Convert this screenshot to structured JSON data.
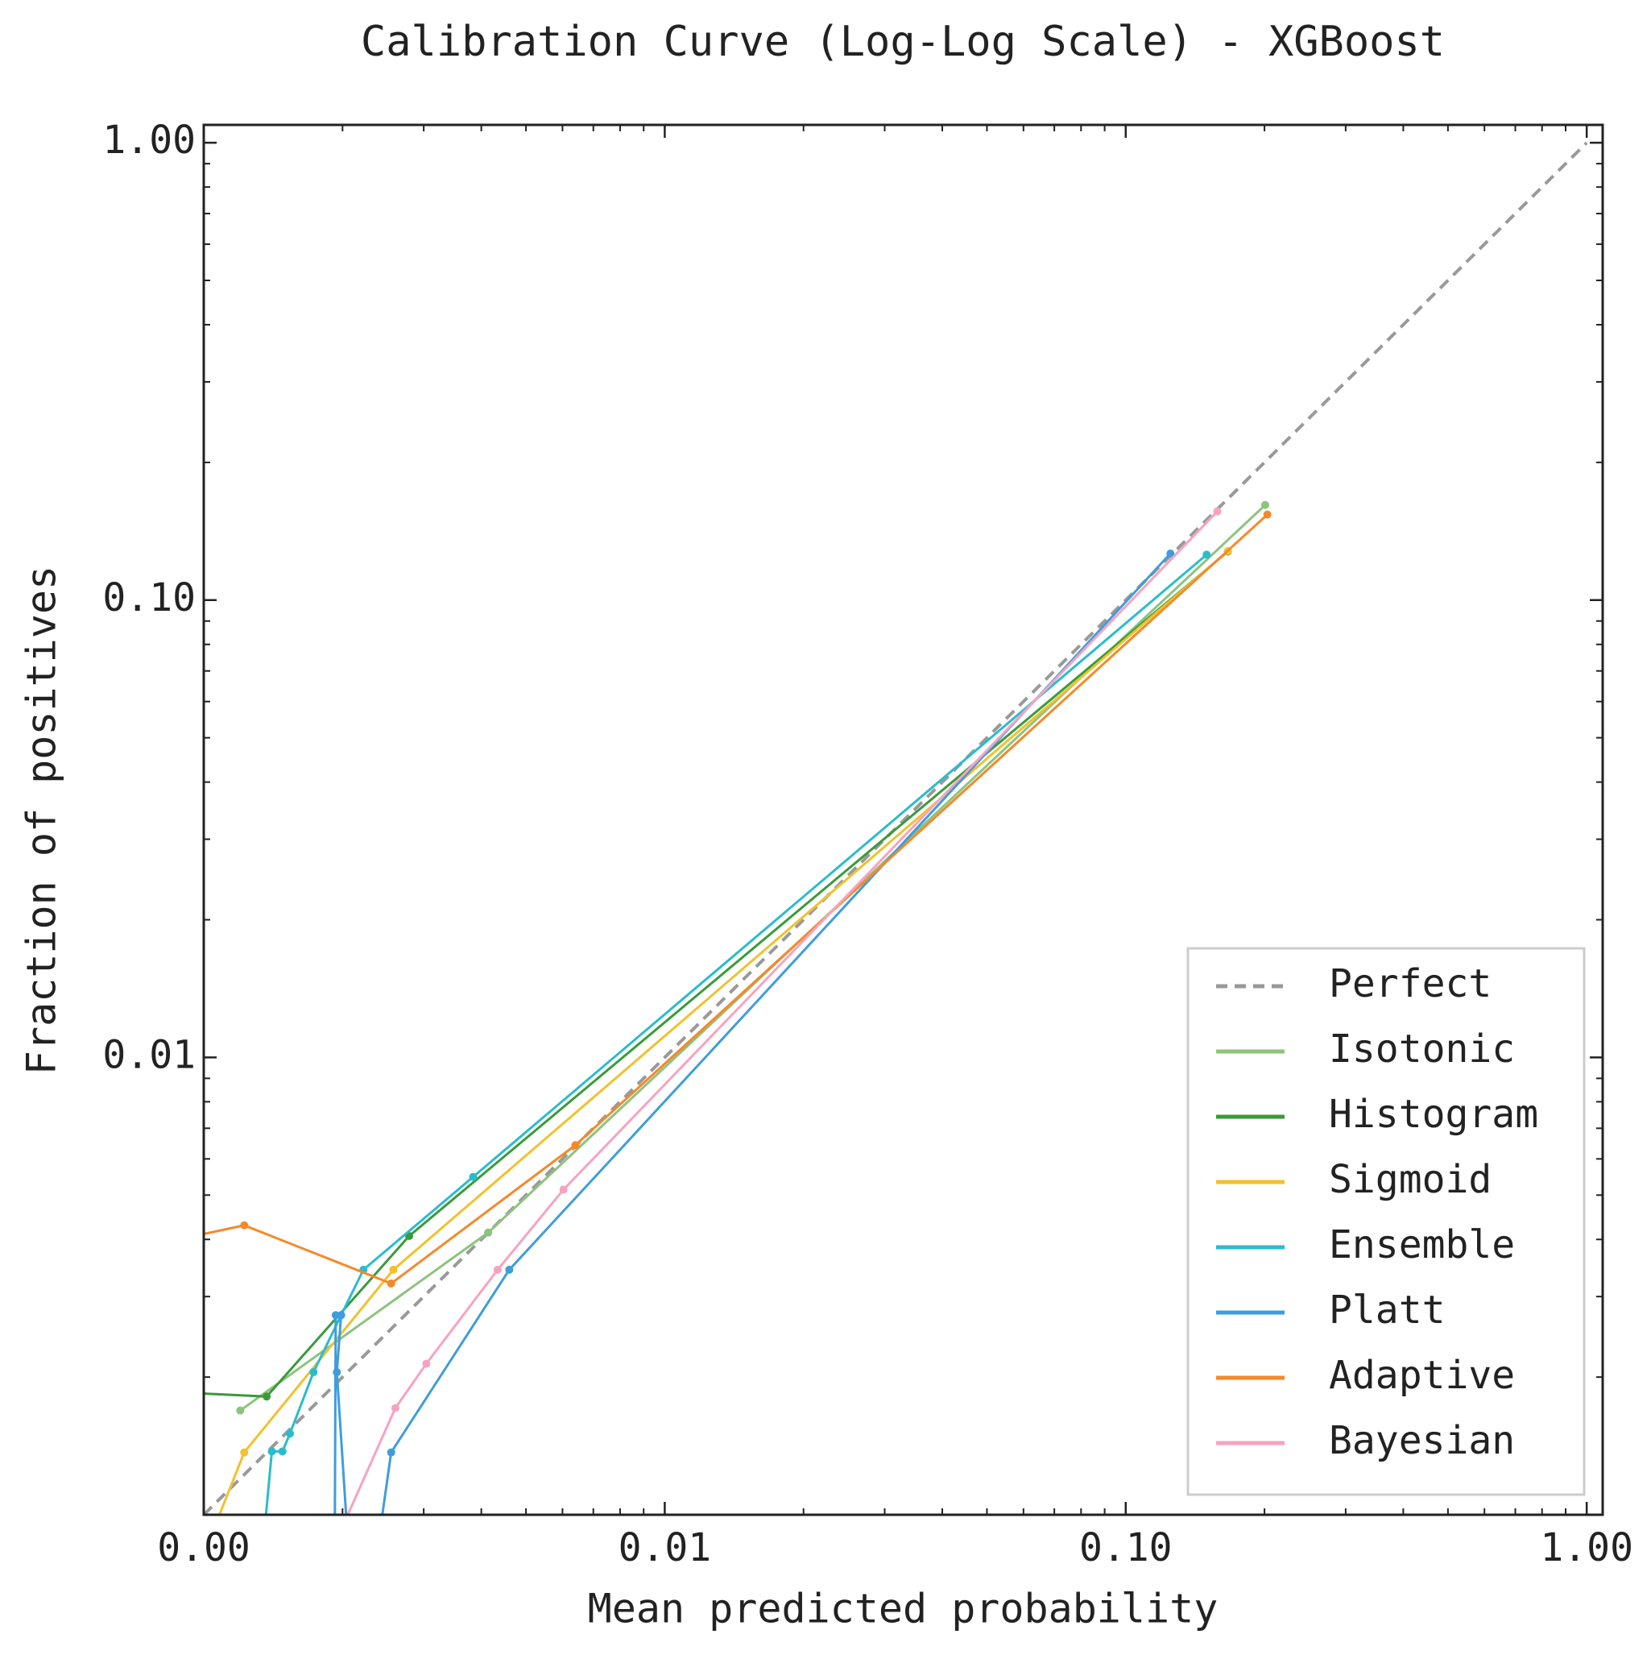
{
  "chart_data": {
    "type": "line",
    "title": "Calibration Curve (Log-Log Scale) - XGBoost",
    "x_label": "Mean predicted probability",
    "y_label": "Fraction of positives",
    "xscale": "log",
    "yscale": "log",
    "xlim": [
      0.001,
      1.083
    ],
    "ylim": [
      0.001,
      1.094
    ],
    "xticks": [
      {
        "value": 0.001,
        "label": "0.00"
      },
      {
        "value": 0.01,
        "label": "0.01"
      },
      {
        "value": 0.1,
        "label": "0.10"
      },
      {
        "value": 1,
        "label": "1.00"
      }
    ],
    "yticks": [
      {
        "value": 0.01,
        "label": "0.01"
      },
      {
        "value": 0.1,
        "label": "0.10"
      },
      {
        "value": 1,
        "label": "1.00"
      }
    ],
    "grid": false,
    "legend": "lower right",
    "series": [
      {
        "name": "Perfect",
        "color": "#999999",
        "style": "dashed",
        "markers": false,
        "x": [
          0.001,
          1
        ],
        "values": [
          0.001,
          1
        ]
      },
      {
        "name": "Isotonic",
        "color": "#8cc47e",
        "style": "solid",
        "markers": true,
        "x": [
          0.0012,
          0.00414,
          0.2007
        ],
        "values": [
          0.00169,
          0.00414,
          0.1614
        ]
      },
      {
        "name": "Histogram",
        "color": "#3a9a3a",
        "style": "solid",
        "markers": true,
        "x": [
          0.000804,
          0.001369,
          0.00279,
          0.1666
        ],
        "values": [
          0.00186,
          0.001814,
          0.00407,
          0.1277
        ]
      },
      {
        "name": "Sigmoid",
        "color": "#f2c12e",
        "style": "solid",
        "markers": true,
        "x": [
          0.00102,
          0.001224,
          0.002578,
          0.1666
        ],
        "values": [
          0.000862,
          0.001369,
          0.003434,
          0.128
        ]
      },
      {
        "name": "Ensemble",
        "color": "#2bbccc",
        "style": "solid",
        "markers": true,
        "x": [
          0.001333,
          0.001405,
          0.001482,
          0.001538,
          0.00173,
          0.001986,
          0.00222,
          0.00384,
          0.1498
        ],
        "values": [
          0.000775,
          0.001376,
          0.001376,
          0.001505,
          0.00205,
          0.002732,
          0.003434,
          0.00548,
          0.1257
        ]
      },
      {
        "name": "Platt",
        "color": "#3f9ddb",
        "style": "solid",
        "markers": true,
        "x": [
          0.001923,
          0.001933,
          0.001986,
          0.001944,
          0.00207,
          0.002354,
          0.00255,
          0.0046,
          0.125
        ],
        "values": [
          0.000775,
          0.002732,
          0.002732,
          0.00205,
          0.000775,
          0.000775,
          0.001369,
          0.003434,
          0.1264
        ]
      },
      {
        "name": "Adaptive",
        "color": "#f5892a",
        "style": "solid",
        "markers": true,
        "x": [
          0.000804,
          0.001224,
          0.00255,
          0.0064,
          0.2029
        ],
        "values": [
          0.003922,
          0.004294,
          0.003204,
          0.00643,
          0.1538
        ]
      },
      {
        "name": "Bayesian",
        "color": "#f7a3c0",
        "style": "solid",
        "markers": true,
        "x": [
          0.001834,
          0.002604,
          0.00304,
          0.00434,
          0.00603,
          0.158
        ],
        "values": [
          0.000775,
          0.001711,
          0.00214,
          0.003434,
          0.00514,
          0.1563
        ]
      }
    ]
  }
}
